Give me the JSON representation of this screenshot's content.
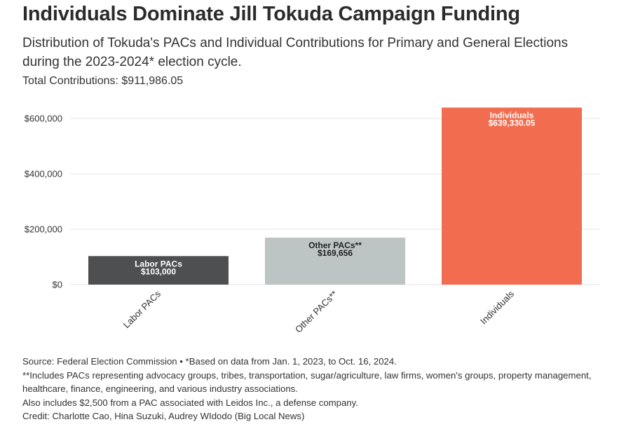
{
  "title": "Individuals Dominate Jill Tokuda Campaign Funding",
  "subtitle": "Distribution of Tokuda's PACs and Individual Contributions for Primary and General Elections during the 2023-2024* election cycle.",
  "total": "Total Contributions: $911,986.05",
  "chart_data": {
    "type": "bar",
    "categories": [
      "Labor PACs",
      "Other PACs**",
      "Individuals"
    ],
    "values": [
      103000,
      169656,
      639330.05
    ],
    "data_labels": [
      {
        "name": "Labor PACs",
        "value": "$103,000"
      },
      {
        "name": "Other PACs**",
        "value": "$169,656"
      },
      {
        "name": "Individuals",
        "value": "$639,330.05"
      }
    ],
    "colors": [
      "#4d4f51",
      "#bcc5c3",
      "#f26c4f"
    ],
    "label_colors": [
      "#ffffff",
      "#222222",
      "#ffffff"
    ],
    "y_ticks": [
      0,
      200000,
      400000,
      600000
    ],
    "y_tick_labels": [
      "$0",
      "$200,000",
      "$400,000",
      "$600,000"
    ],
    "ylim": [
      0,
      660000
    ],
    "xlabel": "",
    "ylabel": "",
    "grid": true
  },
  "notes": {
    "source": "Source: Federal Election Commission • *Based on data from Jan. 1, 2023, to Oct. 16, 2024.",
    "note1": "**Includes PACs representing advocacy groups, tribes, transportation, sugar/agriculture, law firms, women's groups, property management, healthcare, finance, engineering, and various industry associations.",
    "note2": "Also includes $2,500 from a PAC associated with Leidos Inc., a defense company.",
    "credit": "Credit: Charlotte Cao, Hina Suzuki, Audrey WIdodo (Big Local News)"
  }
}
